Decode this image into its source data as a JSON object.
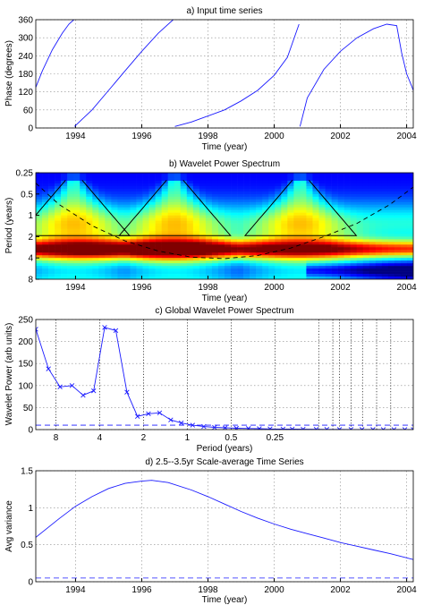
{
  "chart_data": [
    {
      "id": "a",
      "type": "line",
      "title": "a) Input time series",
      "xlabel": "Time (year)",
      "ylabel": "Phase (degrees)",
      "xlim": [
        1992.8,
        2004.2
      ],
      "ylim": [
        0,
        360
      ],
      "xticks": [
        1994,
        1996,
        1998,
        2000,
        2002,
        2004
      ],
      "yticks": [
        0,
        60,
        120,
        180,
        240,
        300,
        360
      ],
      "grid": true,
      "segments": [
        {
          "x": [
            1992.8,
            1993.0,
            1993.3,
            1993.6,
            1993.8,
            1993.95
          ],
          "y": [
            135,
            190,
            260,
            315,
            345,
            360
          ]
        },
        {
          "x": [
            1993.97,
            1994.5,
            1995.0,
            1995.5,
            1996.0,
            1996.5,
            1996.95
          ],
          "y": [
            5,
            60,
            125,
            190,
            255,
            315,
            360
          ]
        },
        {
          "x": [
            1997.0,
            1997.5,
            1998.0,
            1998.5,
            1999.0,
            1999.5,
            2000.0,
            2000.4,
            2000.75
          ],
          "y": [
            5,
            20,
            40,
            60,
            90,
            125,
            175,
            235,
            345
          ]
        },
        {
          "x": [
            2000.78,
            2001.0,
            2001.5,
            2002.0,
            2002.5,
            2003.0,
            2003.4,
            2003.7,
            2003.85,
            2004.0,
            2004.15,
            2004.2
          ],
          "y": [
            5,
            100,
            195,
            255,
            300,
            330,
            345,
            340,
            250,
            180,
            140,
            125
          ]
        }
      ]
    },
    {
      "id": "b",
      "type": "heatmap",
      "title": "b) Wavelet Power Spectrum",
      "xlabel": "Time (year)",
      "ylabel": "Period (years)",
      "xlim": [
        1992.8,
        2004.2
      ],
      "yticks": [
        "0.25",
        "0.5",
        "1",
        "2",
        "4",
        "8"
      ],
      "yscale": "log2",
      "ylim": [
        0.25,
        8
      ],
      "xticks": [
        1994,
        1996,
        1998,
        2000,
        2002,
        2004
      ],
      "colormap": "jet",
      "coi_x": [
        1992.8,
        1993.5,
        1994.5,
        1995.5,
        1996.5,
        1997.5,
        1998.5,
        1999.5,
        2000.5,
        2001.5,
        2002.5,
        2003.5,
        2004.2
      ],
      "coi_period": [
        0.35,
        0.7,
        1.4,
        2.3,
        3.2,
        3.9,
        4.1,
        3.7,
        2.9,
        2.0,
        1.3,
        0.7,
        0.4
      ],
      "peaks_x": [
        1993.95,
        1997.0,
        2000.8
      ]
    },
    {
      "id": "c",
      "type": "line",
      "title": "c) Global Wavelet Power Spectrum",
      "xlabel": "Period (years)",
      "ylabel": "Wavelet Power (arb units)",
      "xscale": "log2-reversed",
      "xlim": [
        11,
        0.028
      ],
      "ylim": [
        0,
        250
      ],
      "yticks": [
        0,
        50,
        100,
        150,
        200,
        250
      ],
      "xticks": [
        "8",
        "4",
        "2",
        "1",
        "0.5",
        "0.25"
      ],
      "x": [
        11,
        9,
        7.5,
        6.2,
        5.2,
        4.4,
        3.7,
        3.1,
        2.6,
        2.2,
        1.85,
        1.55,
        1.3,
        1.1,
        0.92,
        0.77,
        0.65,
        0.55,
        0.46,
        0.38,
        0.32,
        0.27,
        0.22,
        0.19,
        0.16,
        0.13,
        0.11,
        0.09,
        0.075,
        0.063,
        0.053,
        0.045,
        0.038,
        0.032,
        0.028
      ],
      "y": [
        228,
        138,
        97,
        100,
        78,
        88,
        232,
        225,
        85,
        30,
        36,
        38,
        22,
        15,
        10,
        7,
        5,
        4,
        3,
        2.5,
        2,
        1.5,
        1.2,
        1,
        0.8,
        0.6,
        0.5,
        0.4,
        0.3,
        0.2,
        0.2,
        0.1,
        0.1,
        0.1,
        0.1
      ],
      "significance": 10
    },
    {
      "id": "d",
      "type": "line",
      "title": "d) 2.5--3.5yr Scale-average Time Series",
      "xlabel": "Time (year)",
      "ylabel": "Avg variance",
      "xlim": [
        1992.8,
        2004.2
      ],
      "ylim": [
        0,
        1.5
      ],
      "xticks": [
        1994,
        1996,
        1998,
        2000,
        2002,
        2004
      ],
      "yticks": [
        0,
        0.5,
        1,
        1.5
      ],
      "x": [
        1992.8,
        1993.5,
        1994.0,
        1994.5,
        1995.0,
        1995.5,
        1996.0,
        1996.3,
        1996.8,
        1997.5,
        1998.0,
        1998.5,
        1999.0,
        1999.5,
        2000.0,
        2000.5,
        2001.0,
        2001.5,
        2002.0,
        2002.5,
        2003.0,
        2003.5,
        2004.2
      ],
      "y": [
        0.6,
        0.85,
        1.02,
        1.15,
        1.26,
        1.33,
        1.36,
        1.37,
        1.34,
        1.24,
        1.15,
        1.05,
        0.95,
        0.86,
        0.78,
        0.71,
        0.65,
        0.59,
        0.53,
        0.48,
        0.43,
        0.38,
        0.3
      ],
      "significance": 0.05
    }
  ]
}
